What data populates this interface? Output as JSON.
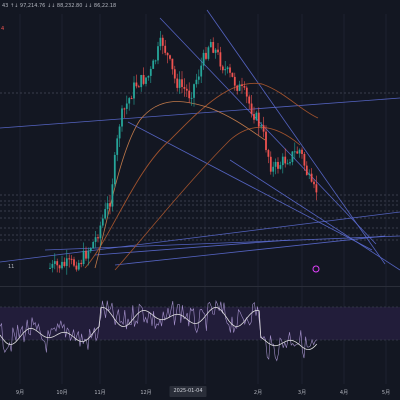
{
  "topbar": {
    "legend_left": "43  ↑↓ 97,214.76   ↓↓ 88,232.80   ↓↓ 86,22.18",
    "left_label": "4"
  },
  "xaxis": {
    "labels": [
      "9月",
      "10月",
      "11月",
      "12月",
      "2月",
      "3月",
      "4月",
      "5月"
    ],
    "selected_date": "2025-01-04"
  },
  "chart": {
    "marker_text": "11",
    "colors": {
      "background": "#131722",
      "up": "#26a69a",
      "down": "#ef5350",
      "trendline": "#5b6bd1",
      "ma": "#a0522d",
      "oscillator": "#b39ddb",
      "oscillator_zone": "#221d3a"
    }
  }
}
